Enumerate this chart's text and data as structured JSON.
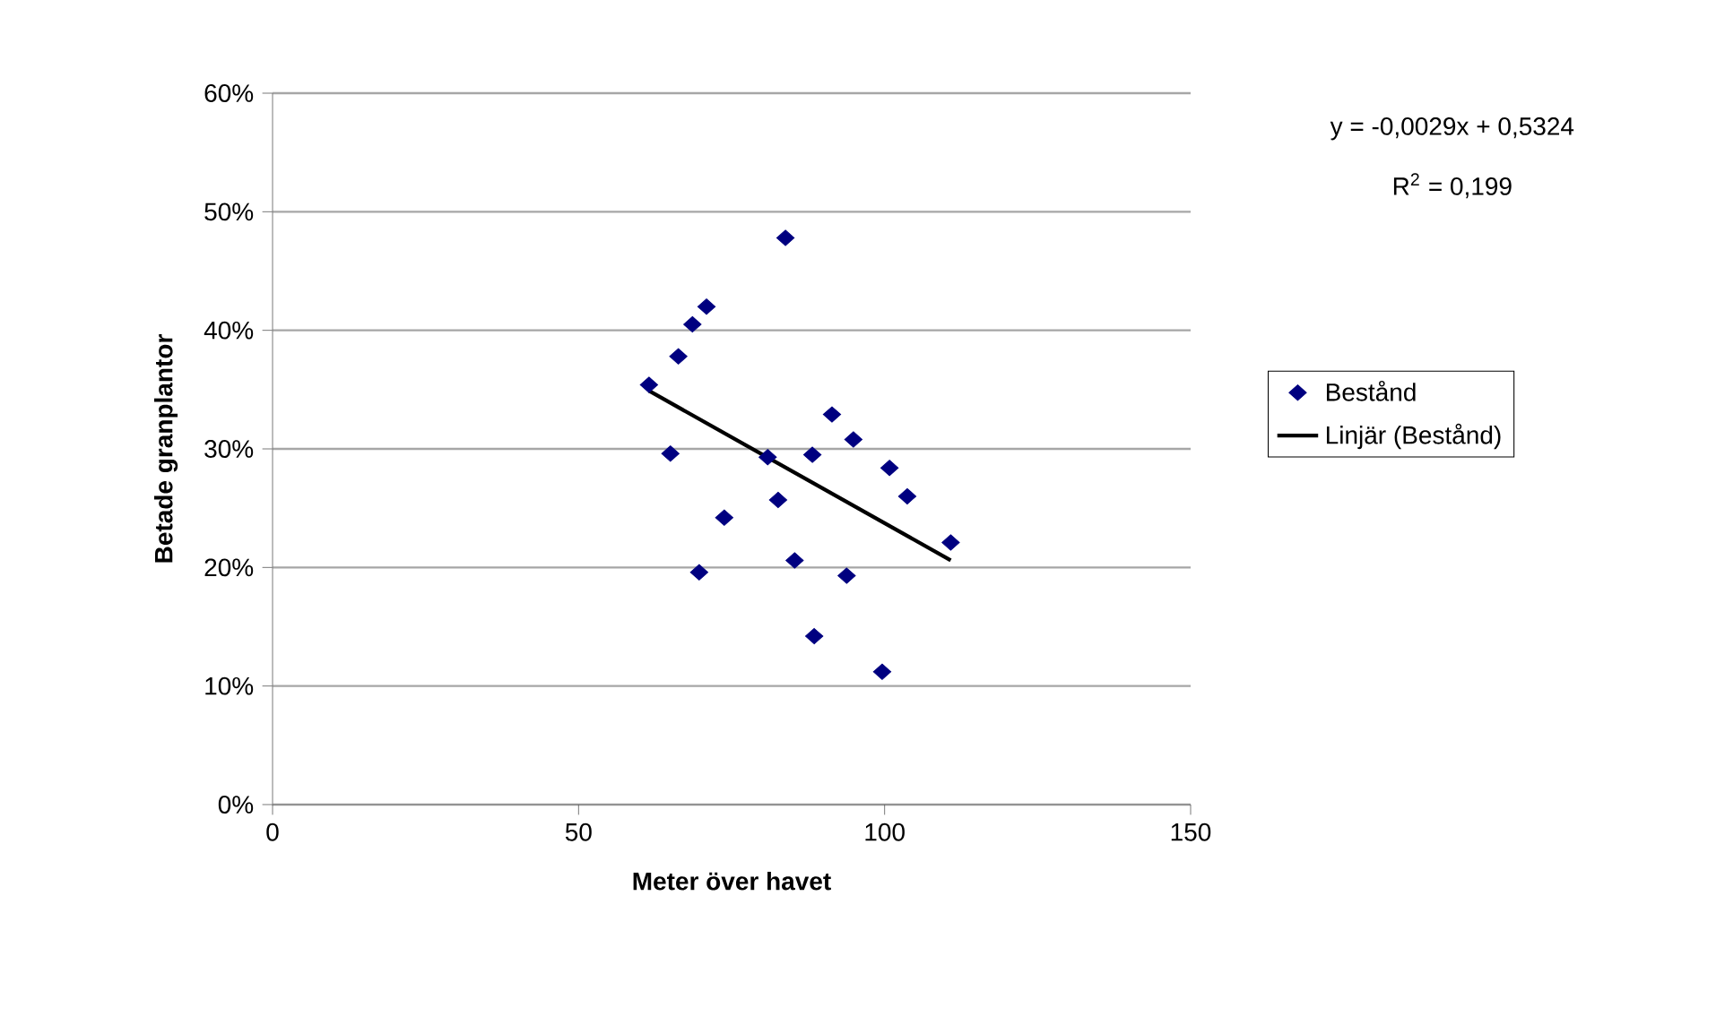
{
  "chart_data": {
    "type": "scatter",
    "xlabel": "Meter över havet",
    "ylabel": "Betade granplantor",
    "xlim": [
      0,
      150
    ],
    "xticks": [
      0,
      50,
      100,
      150
    ],
    "ylim": [
      0,
      0.6
    ],
    "yticks": [
      {
        "value": 0,
        "label": "0%"
      },
      {
        "value": 0.1,
        "label": "10%"
      },
      {
        "value": 0.2,
        "label": "20%"
      },
      {
        "value": 0.3,
        "label": "30%"
      },
      {
        "value": 0.4,
        "label": "40%"
      },
      {
        "value": 0.5,
        "label": "50%"
      },
      {
        "value": 0.6,
        "label": "60%"
      }
    ],
    "grid": "y",
    "legend": "right",
    "annotations": [
      "y = -0,0029x + 0,5324",
      "R$^{2}$ = 0,199"
    ],
    "series": [
      {
        "name": "Bestånd",
        "marker": "diamond",
        "color": "#000080",
        "x": [
          61.5,
          66.3,
          68.6,
          70.9,
          83.8,
          65.0,
          69.7,
          73.8,
          80.9,
          82.6,
          85.3,
          88.2,
          88.5,
          91.4,
          94.9,
          93.8,
          100.8,
          103.7,
          99.6,
          110.8
        ],
        "values": [
          0.354,
          0.378,
          0.405,
          0.42,
          0.478,
          0.296,
          0.196,
          0.242,
          0.293,
          0.257,
          0.206,
          0.295,
          0.142,
          0.329,
          0.308,
          0.193,
          0.284,
          0.26,
          0.112,
          0.221
        ]
      },
      {
        "name": "Linjär (Bestånd)",
        "type": "line",
        "marker": "none",
        "color": "#000000",
        "x": [
          61.5,
          110.8
        ],
        "values": [
          0.349,
          0.206
        ]
      }
    ]
  }
}
